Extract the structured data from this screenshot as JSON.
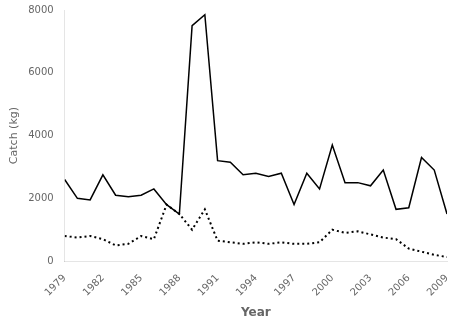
{
  "chart_data": {
    "type": "line",
    "x": [
      1979,
      1980,
      1981,
      1982,
      1983,
      1984,
      1985,
      1986,
      1987,
      1988,
      1989,
      1990,
      1991,
      1992,
      1993,
      1994,
      1995,
      1996,
      1997,
      1998,
      1999,
      2000,
      2001,
      2002,
      2003,
      2004,
      2005,
      2006,
      2007,
      2008,
      2009
    ],
    "series": [
      {
        "color": "#000000",
        "line_style": "solid",
        "values": [
          2600,
          2000,
          1950,
          2750,
          2100,
          2050,
          2100,
          2300,
          1800,
          1500,
          7500,
          7850,
          3200,
          3150,
          2750,
          2800,
          2700,
          2800,
          1800,
          2800,
          2300,
          3700,
          2500,
          2500,
          2400,
          2900,
          1650,
          1700,
          3300,
          2900,
          1500
        ]
      },
      {
        "color": "#000000",
        "line_style": "dotted",
        "values": [
          800,
          750,
          800,
          700,
          500,
          550,
          800,
          700,
          1800,
          1500,
          1000,
          1650,
          650,
          600,
          550,
          600,
          550,
          600,
          550,
          550,
          600,
          1000,
          900,
          950,
          850,
          750,
          700,
          400,
          300,
          200,
          130
        ]
      }
    ],
    "xlabel": "Year",
    "ylabel": "Catch (kg)",
    "xlim": [
      1979,
      2009
    ],
    "xticks": [
      1979,
      1982,
      1985,
      1988,
      1991,
      1994,
      1997,
      2000,
      2003,
      2006,
      2009
    ],
    "ylim": [
      0,
      8000
    ],
    "yticks": [
      0,
      2000,
      4000,
      6000,
      8000
    ],
    "grid": false,
    "background_color": "#ffffff"
  }
}
